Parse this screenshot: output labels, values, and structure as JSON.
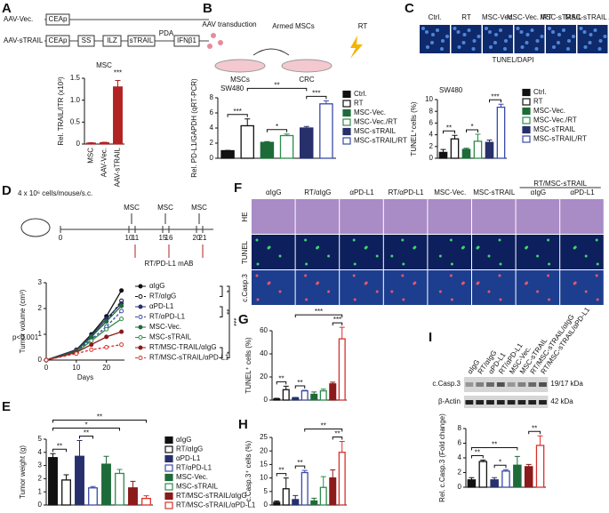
{
  "figure": {
    "panels": [
      "A",
      "B",
      "C",
      "D",
      "E",
      "F",
      "G",
      "H",
      "I"
    ],
    "a": {
      "constructs": [
        "AAV-Vec.",
        "AAV-sTRAIL"
      ],
      "elements": [
        "CEAp",
        "CEAp",
        "SS",
        "ILZ",
        "sTRAIL",
        "PDA",
        "IFNβ1"
      ]
    },
    "b": {
      "labels": [
        "AAV transduction",
        "Armed MSCs",
        "RT",
        "MSCs",
        "CRC"
      ]
    },
    "c": {
      "images": [
        "Ctrl.",
        "RT",
        "MSC-Vec.",
        "MSC-Vec. /RT",
        "MSC-sTRAIL",
        "MSC-sTRAIL /RT"
      ],
      "stain": "TUNEL/DAPI"
    },
    "d": {
      "cells": "4 x 10⁶ cells/mouse/s.c.",
      "msc": [
        "MSC",
        "MSC",
        "MSC"
      ],
      "days": [
        "0",
        "10",
        "11",
        "15",
        "16",
        "20",
        "21"
      ],
      "treatment": "RT/PD-L1 mAB"
    },
    "f": {
      "columns": [
        "αIgG",
        "RT/αIgG",
        "αPD-L1",
        "RT/αPD-L1",
        "MSC-Vec.",
        "MSC-sTRAIL"
      ],
      "group": "RT/MSC-sTRAIL",
      "group_columns": [
        "αIgG",
        "αPD-L1"
      ],
      "rows": [
        "HE",
        "TUNEL",
        "c.Casp.3"
      ]
    },
    "i": {
      "lanes": [
        "αIgG",
        "RT/αIgG",
        "αPD-L1",
        "RT/αPD-L1",
        "MSC-Vec.",
        "MSC-sTRAIL",
        "RT/MSC-sTRAIL/αIgG",
        "RT/MSC-sTRAIL/αPD-L1"
      ],
      "bands": [
        "c.Casp.3",
        "β-Actin"
      ],
      "sizes": [
        "19/17 kDa",
        "42 kDa"
      ]
    }
  },
  "chart_data": [
    {
      "type": "bar",
      "title": "MSC",
      "ylabel": "Rel. TRAIL/ITR (x10³)",
      "categories": [
        "MSC",
        "AAV-Vec.",
        "AAV-sTRAIL"
      ],
      "category_position": "axis",
      "values": [
        0.02,
        0.03,
        1.3
      ],
      "errors": [
        0.01,
        0.01,
        0.15
      ],
      "color": "#b22222",
      "ylim": [
        0,
        1.5
      ],
      "yticks": [
        0,
        0.5,
        {
          "value": 1,
          "label": "1.0"
        },
        1.5
      ],
      "significance": [
        {
          "from": 2,
          "to": 2,
          "label": "***"
        }
      ]
    },
    {
      "type": "bar",
      "title": "SW480",
      "ylabel": "Rel. PD-L1/GAPDH (qRT-PCR)",
      "categories": [
        "Ctrl.",
        "RT",
        "MSC-Vec.",
        "MSC-Vec./RT",
        "MSC-sTRAIL",
        "MSC-sTRAIL/RT"
      ],
      "category_position": "legend",
      "values": [
        1,
        4.3,
        2.1,
        3.0,
        4.0,
        7.2
      ],
      "errors": [
        0.05,
        0.9,
        0.1,
        0.2,
        0.2,
        0.4
      ],
      "colors": [
        "#111111",
        "#ffffff",
        "#1e6b3a",
        "#ffffff",
        "#27306b",
        "#ffffff"
      ],
      "edges": [
        "#111111",
        "#111111",
        "#1e6b3a",
        "#2e8b4a",
        "#27306b",
        "#3b4aa8"
      ],
      "ylim": [
        0,
        8
      ],
      "yticks": [
        0,
        2,
        4,
        6,
        8
      ],
      "significance": [
        {
          "from": 0,
          "to": 1,
          "label": "***"
        },
        {
          "from": 2,
          "to": 3,
          "label": "*"
        },
        {
          "from": 4,
          "to": 5,
          "label": "***"
        },
        {
          "from": 1,
          "to": 4,
          "label": "**"
        }
      ]
    },
    {
      "type": "bar",
      "title": "SW480",
      "ylabel": "TUNEL⁺cells (%)",
      "categories": [
        "Ctrl.",
        "RT",
        "MSC-Vec.",
        "MSC-Vec./RT",
        "MSC-sTRAIL",
        "MSC-sTRAIL/RT"
      ],
      "category_position": "legend",
      "values": [
        1.0,
        3.3,
        1.5,
        2.9,
        2.7,
        8.7
      ],
      "errors": [
        0.5,
        0.6,
        0.2,
        1.2,
        0.4,
        0.5
      ],
      "colors": [
        "#111111",
        "#ffffff",
        "#1e6b3a",
        "#ffffff",
        "#27306b",
        "#ffffff"
      ],
      "edges": [
        "#111111",
        "#111111",
        "#1e6b3a",
        "#2e8b4a",
        "#27306b",
        "#3b4aa8"
      ],
      "ylim": [
        0,
        10
      ],
      "yticks": [
        0,
        2,
        4,
        6,
        8,
        10
      ],
      "significance": [
        {
          "from": 0,
          "to": 1,
          "label": "**"
        },
        {
          "from": 2,
          "to": 3,
          "label": "*"
        },
        {
          "from": 4,
          "to": 5,
          "label": "***"
        }
      ]
    },
    {
      "type": "line",
      "xlabel": "Days",
      "ylabel": "Tumor volume (cm³)",
      "annotation": "p<0.001",
      "x": [
        0,
        10,
        15,
        20,
        25
      ],
      "xlim": [
        0,
        26
      ],
      "xticks": [
        0,
        10,
        20
      ],
      "ylim": [
        0,
        3
      ],
      "yticks": [
        0,
        1,
        2,
        3
      ],
      "series": [
        {
          "name": "αIgG",
          "color": "#111111",
          "hollow": false,
          "dashed": false,
          "values": [
            0,
            0.4,
            1.0,
            1.7,
            2.7
          ]
        },
        {
          "name": "RT/αIgG",
          "color": "#111111",
          "hollow": true,
          "dashed": true,
          "values": [
            0,
            0.35,
            0.9,
            1.5,
            2.3
          ]
        },
        {
          "name": "αPD-L1",
          "color": "#27306b",
          "hollow": false,
          "dashed": false,
          "values": [
            0,
            0.4,
            0.95,
            1.6,
            2.2
          ]
        },
        {
          "name": "RT/αPD-L1",
          "color": "#3b4aa8",
          "hollow": true,
          "dashed": true,
          "values": [
            0,
            0.35,
            0.8,
            1.3,
            1.9
          ]
        },
        {
          "name": "MSC-Vec.",
          "color": "#1e6b3a",
          "hollow": false,
          "dashed": false,
          "values": [
            0,
            0.35,
            0.9,
            1.5,
            2.1
          ]
        },
        {
          "name": "MSC-sTRAIL",
          "color": "#2e8b4a",
          "hollow": true,
          "dashed": false,
          "values": [
            0,
            0.3,
            0.75,
            1.2,
            1.6
          ]
        },
        {
          "name": "RT/MSC-TRAIL/αIgG",
          "color": "#8b1a1a",
          "hollow": false,
          "dashed": false,
          "values": [
            0,
            0.3,
            0.6,
            0.9,
            1.1
          ]
        },
        {
          "name": "RT/MSC-sTRAIL/αPD-L1",
          "color": "#d9312b",
          "hollow": true,
          "dashed": true,
          "values": [
            0,
            0.25,
            0.4,
            0.5,
            0.6
          ]
        }
      ],
      "significance": [
        {
          "from": 0,
          "to": 1,
          "label": "*"
        },
        {
          "from": 2,
          "to": 3,
          "label": "**"
        },
        {
          "from": 6,
          "to": 7,
          "label": "*"
        },
        {
          "from": 0,
          "to": 7,
          "label": "***"
        }
      ]
    },
    {
      "type": "bar",
      "ylabel": "Tumor weight (g)",
      "categories": [
        "αIgG",
        "RT/αIgG",
        "αPD-L1",
        "RT/αPD-L1",
        "MSC-Vec.",
        "MSC-sTRAIL",
        "RT/MSC-sTRAIL/αIgG",
        "RT/MSC-sTRAIL/αPD-L1"
      ],
      "category_position": "legend",
      "values": [
        3.6,
        1.9,
        3.7,
        1.3,
        3.1,
        2.4,
        1.3,
        0.5
      ],
      "errors": [
        0.3,
        0.4,
        1.2,
        0.1,
        0.6,
        0.3,
        0.5,
        0.2
      ],
      "colors": [
        "#111111",
        "#ffffff",
        "#27306b",
        "#ffffff",
        "#1e6b3a",
        "#ffffff",
        "#8b1a1a",
        "#ffffff"
      ],
      "edges": [
        "#111111",
        "#111111",
        "#27306b",
        "#3b4aa8",
        "#1e6b3a",
        "#2e8b4a",
        "#8b1a1a",
        "#d9312b"
      ],
      "ylim": [
        0,
        5
      ],
      "yticks": [
        0,
        1,
        2,
        3,
        4,
        5
      ],
      "significance": [
        {
          "from": 0,
          "to": 1,
          "label": "**"
        },
        {
          "from": 2,
          "to": 3,
          "label": "**"
        },
        {
          "from": 0,
          "to": 5,
          "label": "*"
        },
        {
          "from": 0,
          "to": 7,
          "label": "**"
        }
      ]
    },
    {
      "type": "bar",
      "ylabel": "TUNEL⁺ cells (%)",
      "values": [
        1,
        9,
        2,
        8,
        5,
        8,
        14,
        53
      ],
      "errors": [
        0.5,
        3,
        0.3,
        0.5,
        2,
        1.5,
        1.5,
        10
      ],
      "colors": [
        "#111111",
        "#ffffff",
        "#27306b",
        "#ffffff",
        "#1e6b3a",
        "#ffffff",
        "#8b1a1a",
        "#ffffff"
      ],
      "edges": [
        "#111111",
        "#111111",
        "#27306b",
        "#3b4aa8",
        "#1e6b3a",
        "#2e8b4a",
        "#8b1a1a",
        "#d9312b"
      ],
      "ylim": [
        0,
        60
      ],
      "yticks": [
        0,
        20,
        40,
        60
      ],
      "significance": [
        {
          "from": 0,
          "to": 1,
          "label": "**"
        },
        {
          "from": 2,
          "to": 3,
          "label": "**"
        },
        {
          "from": 6,
          "to": 7,
          "label": "***"
        },
        {
          "from": 2,
          "to": 7,
          "label": "***"
        }
      ]
    },
    {
      "type": "bar",
      "ylabel": "c.Casp.3⁺ cells (%)",
      "values": [
        1,
        6,
        2,
        12,
        1.5,
        6.5,
        10,
        19.5
      ],
      "errors": [
        0.5,
        4,
        1.5,
        0.8,
        1,
        4,
        3,
        4
      ],
      "colors": [
        "#111111",
        "#ffffff",
        "#27306b",
        "#ffffff",
        "#1e6b3a",
        "#ffffff",
        "#8b1a1a",
        "#ffffff"
      ],
      "edges": [
        "#111111",
        "#111111",
        "#27306b",
        "#3b4aa8",
        "#1e6b3a",
        "#2e8b4a",
        "#8b1a1a",
        "#d9312b"
      ],
      "ylim": [
        0,
        25
      ],
      "yticks": [
        0,
        5,
        10,
        15,
        20,
        25
      ],
      "significance": [
        {
          "from": 0,
          "to": 1,
          "label": "**"
        },
        {
          "from": 2,
          "to": 3,
          "label": "**"
        },
        {
          "from": 6,
          "to": 7,
          "label": "**"
        },
        {
          "from": 3,
          "to": 7,
          "label": "**"
        }
      ]
    },
    {
      "type": "bar",
      "ylabel": "Rel. c.Casp.3 (Fold change)",
      "values": [
        1,
        3.5,
        1,
        2.2,
        3,
        2.8,
        5.7
      ],
      "errors": [
        0.3,
        0.2,
        0.3,
        0.2,
        1.2,
        0.3,
        1.3
      ],
      "colors": [
        "#111111",
        "#ffffff",
        "#27306b",
        "#ffffff",
        "#1e6b3a",
        "#8b1a1a",
        "#ffffff"
      ],
      "edges": [
        "#111111",
        "#111111",
        "#27306b",
        "#3b4aa8",
        "#1e6b3a",
        "#8b1a1a",
        "#d9312b"
      ],
      "ylim": [
        0,
        8
      ],
      "yticks": [
        0,
        2,
        4,
        6,
        8
      ],
      "significance": [
        {
          "from": 0,
          "to": 1,
          "label": "**"
        },
        {
          "from": 2,
          "to": 3,
          "label": "*"
        },
        {
          "from": 0,
          "to": 4,
          "label": "**"
        },
        {
          "from": 5,
          "to": 6,
          "label": "**"
        }
      ]
    }
  ]
}
